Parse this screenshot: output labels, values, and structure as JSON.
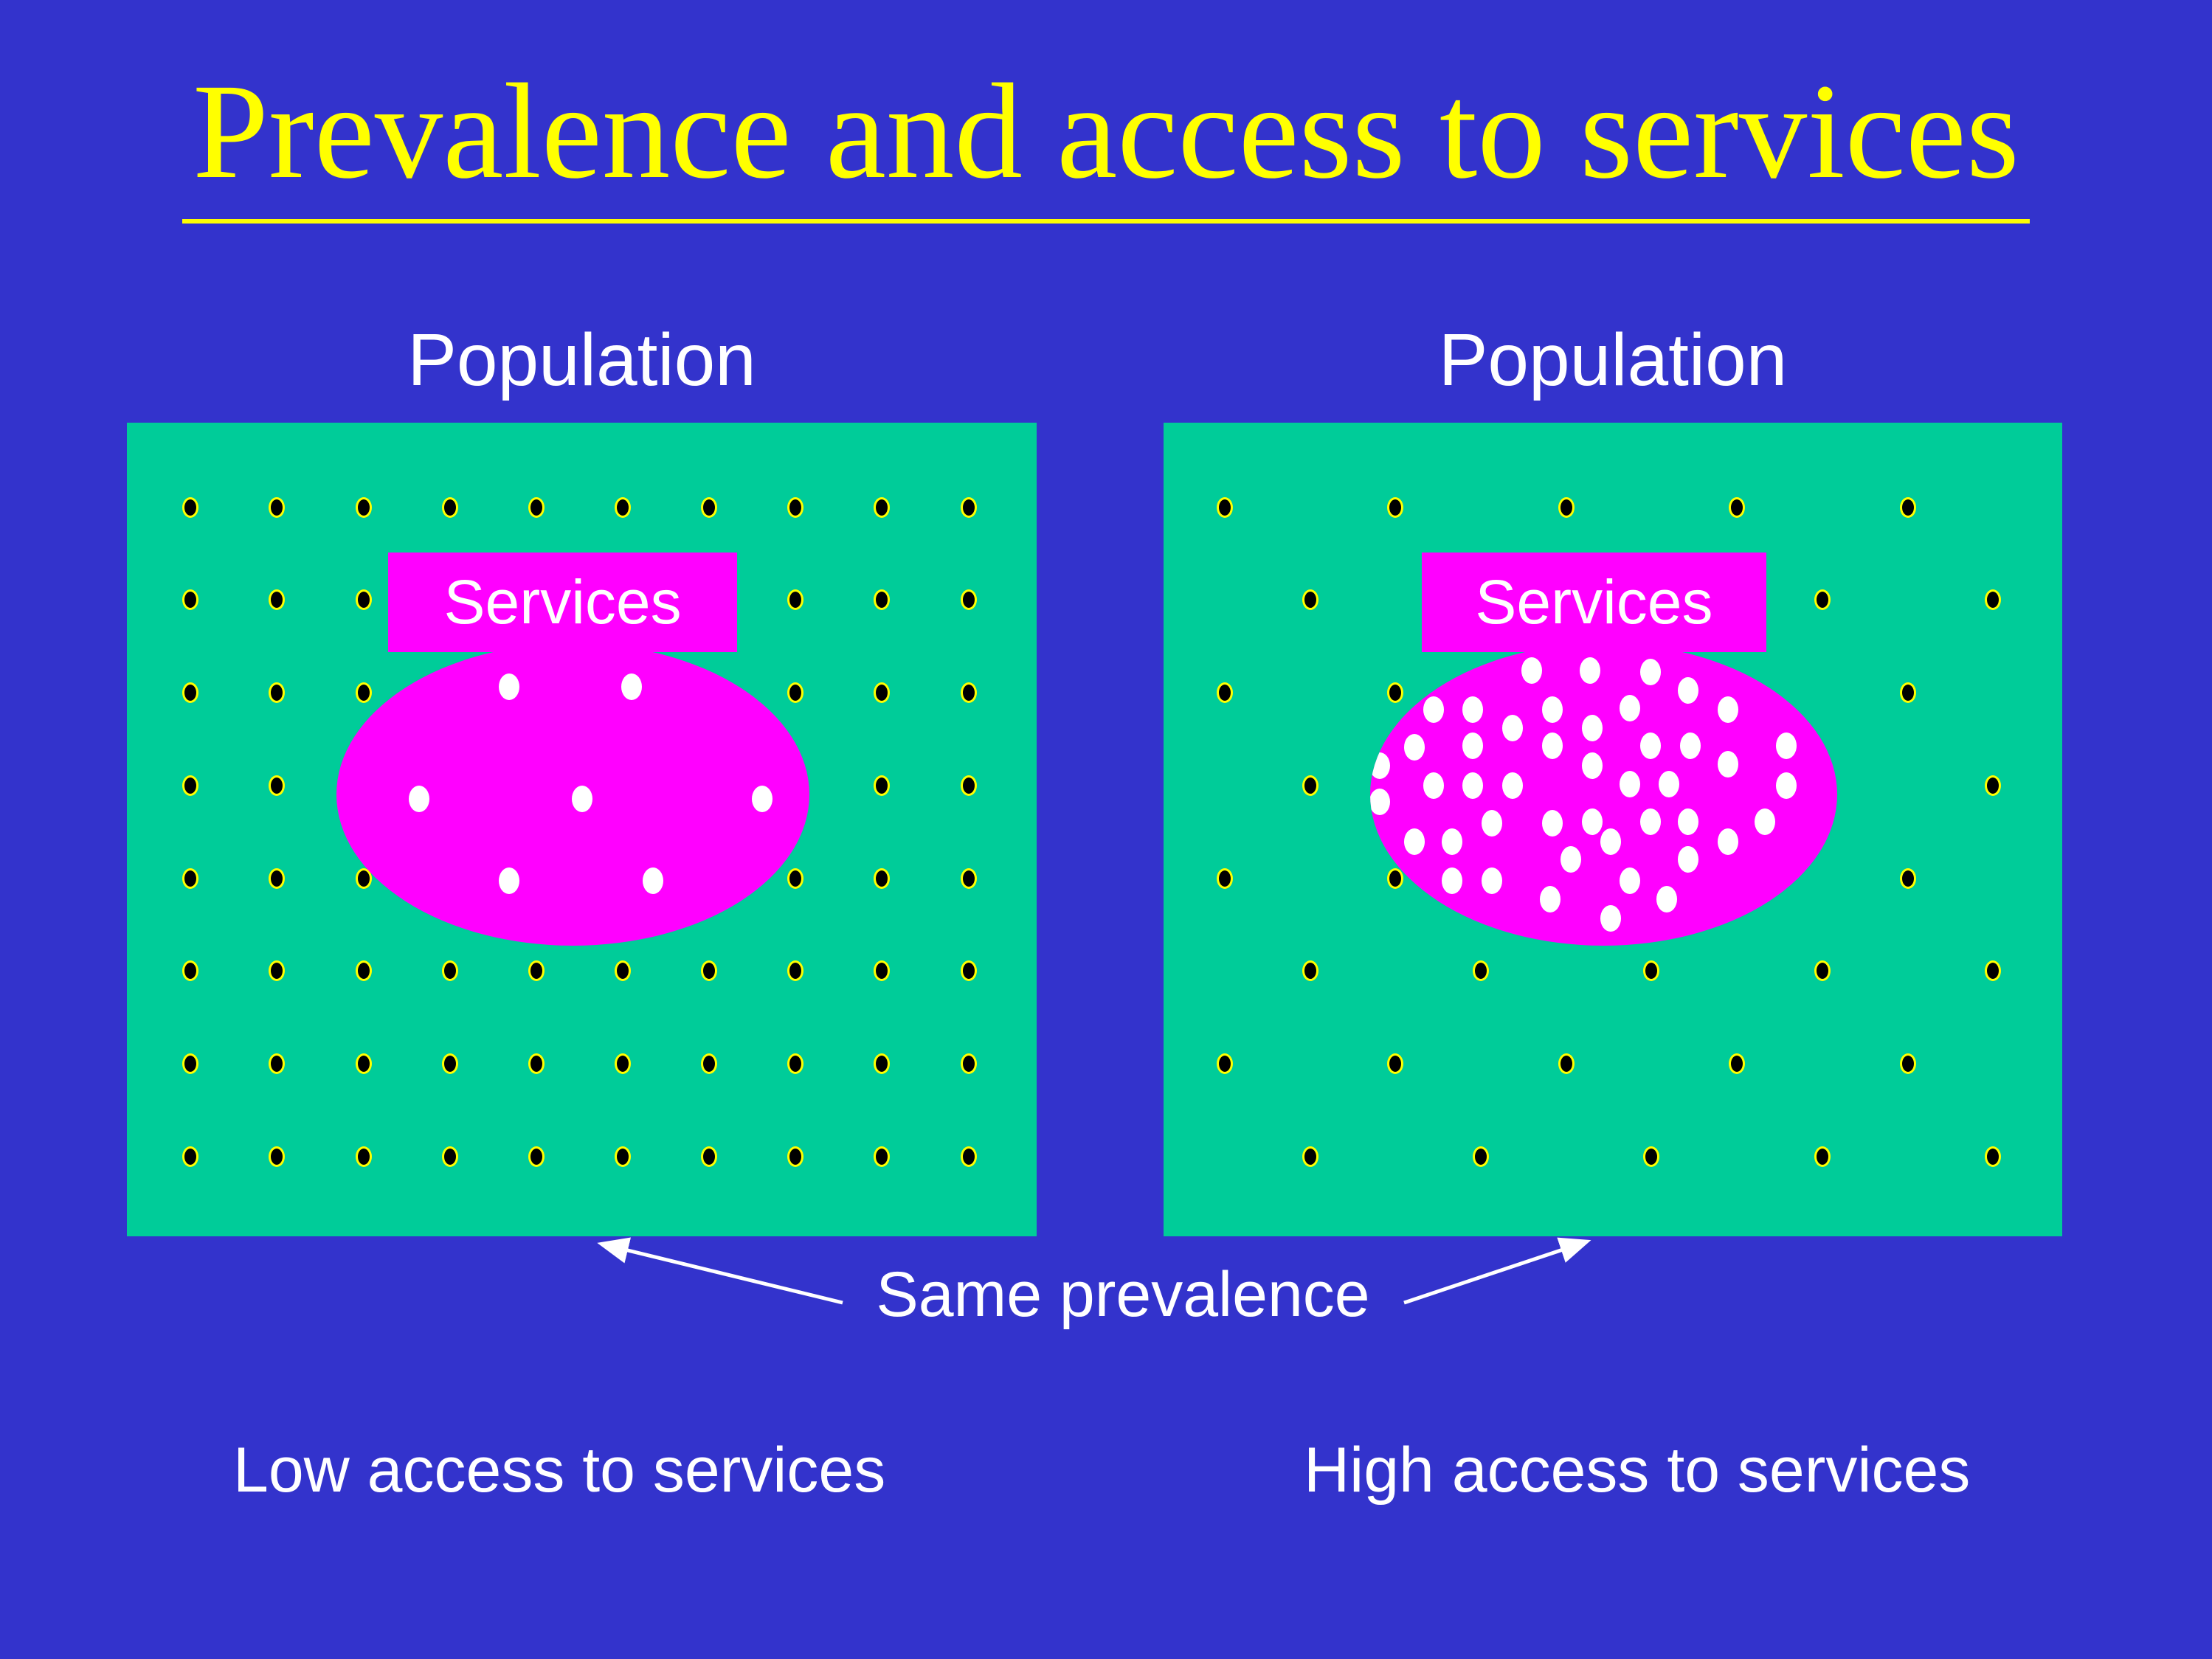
{
  "title": {
    "text": "Prevalence and access to services"
  },
  "colors": {
    "background": "#3333CC",
    "population_box": "#00CC99",
    "services": "#FF00FF",
    "member_dot": "#000000",
    "member_dot_ring": "#FFFF00",
    "service_user_dot": "#FFFFFF",
    "title_text": "#FFFF00",
    "label_text": "#FFFFFF"
  },
  "annotation": {
    "same_prevalence_label": "Same prevalence"
  },
  "panels": [
    {
      "population_label": "Population",
      "services_label": "Services",
      "access_label": "Low access to services",
      "dot_grid": {
        "pattern": "full",
        "rows_pct": [
          10.4,
          21.8,
          33.2,
          44.6,
          56.0,
          67.4,
          78.8,
          90.2
        ],
        "cols_pct": [
          7.0,
          16.5,
          26.0,
          35.5,
          45.0,
          54.5,
          64.0,
          73.5,
          83.0,
          92.5
        ]
      },
      "service_user_dots": [
        [
          -0.27,
          -0.71
        ],
        [
          0.25,
          -0.71
        ],
        [
          -0.65,
          0.03
        ],
        [
          0.04,
          0.03
        ],
        [
          0.8,
          0.03
        ],
        [
          -0.27,
          0.57
        ],
        [
          0.34,
          0.57
        ]
      ]
    },
    {
      "population_label": "Population",
      "services_label": "Services",
      "access_label": "High access to services",
      "dot_grid": {
        "pattern": "checkerboard",
        "rows_pct": [
          10.4,
          21.8,
          33.2,
          44.6,
          56.0,
          67.4,
          78.8,
          90.2
        ],
        "cols_pct": [
          6.8,
          16.3,
          25.8,
          35.3,
          44.8,
          54.3,
          63.8,
          73.3,
          82.8,
          92.3
        ]
      },
      "service_user_dots": [
        [
          -0.31,
          -0.82
        ],
        [
          -0.06,
          -0.82
        ],
        [
          0.2,
          -0.81
        ],
        [
          0.36,
          -0.69
        ],
        [
          -0.73,
          -0.56
        ],
        [
          -0.56,
          -0.56
        ],
        [
          -0.22,
          -0.56
        ],
        [
          0.11,
          -0.57
        ],
        [
          0.53,
          -0.56
        ],
        [
          -0.39,
          -0.44
        ],
        [
          -0.05,
          -0.44
        ],
        [
          -0.81,
          -0.31
        ],
        [
          -0.56,
          -0.32
        ],
        [
          -0.22,
          -0.32
        ],
        [
          0.2,
          -0.32
        ],
        [
          0.37,
          -0.32
        ],
        [
          0.78,
          -0.32
        ],
        [
          -0.96,
          -0.19
        ],
        [
          -0.05,
          -0.19
        ],
        [
          0.53,
          -0.2
        ],
        [
          -0.73,
          -0.06
        ],
        [
          -0.56,
          -0.06
        ],
        [
          -0.39,
          -0.06
        ],
        [
          0.11,
          -0.07
        ],
        [
          0.28,
          -0.07
        ],
        [
          0.78,
          -0.06
        ],
        [
          -0.96,
          0.05
        ],
        [
          -0.48,
          0.19
        ],
        [
          -0.22,
          0.19
        ],
        [
          -0.05,
          0.18
        ],
        [
          0.2,
          0.18
        ],
        [
          0.36,
          0.18
        ],
        [
          0.69,
          0.18
        ],
        [
          -0.81,
          0.31
        ],
        [
          -0.65,
          0.31
        ],
        [
          0.03,
          0.31
        ],
        [
          0.53,
          0.31
        ],
        [
          -0.14,
          0.43
        ],
        [
          0.36,
          0.43
        ],
        [
          -0.65,
          0.57
        ],
        [
          -0.48,
          0.57
        ],
        [
          0.11,
          0.57
        ],
        [
          -0.23,
          0.69
        ],
        [
          0.27,
          0.69
        ],
        [
          0.03,
          0.82
        ]
      ]
    }
  ]
}
